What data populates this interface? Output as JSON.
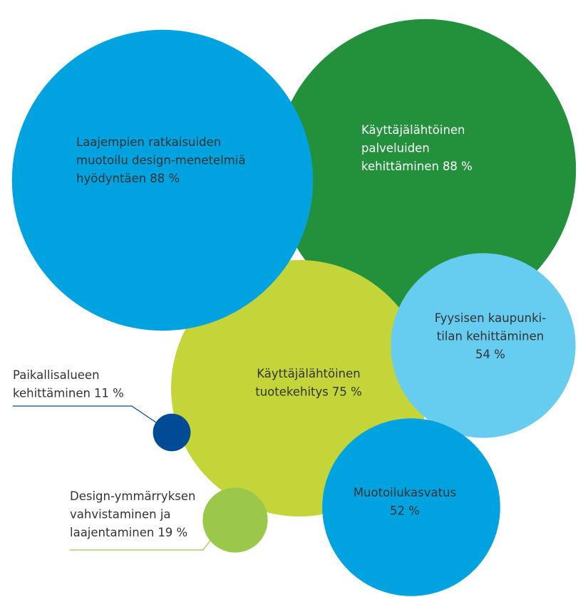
{
  "chart_data": {
    "type": "bubble",
    "categories": [
      [
        "Laajempien ratkaisuiden",
        "muotoilu design-menetelmiä",
        "hyödyntäen"
      ],
      [
        "Käyttäjälähtöinen",
        "palveluiden",
        "kehittäminen"
      ],
      [
        "Käyttäjälähtöinen",
        "tuotekehitys"
      ],
      [
        "Fyysisen kaupunki-",
        "tilan kehittäminen"
      ],
      [
        "Muotoilukasvatus"
      ],
      [
        "Paikallisalueen",
        "kehittäminen"
      ],
      [
        "Design-ymmärryksen",
        "vahvistaminen ja",
        "laajentaminen"
      ]
    ],
    "values": [
      88,
      88,
      75,
      54,
      52,
      11,
      19
    ],
    "value_labels": [
      "88 %",
      "88 %",
      "75 %",
      "54 %",
      "52 %",
      "11 %",
      "19 %"
    ],
    "colors": [
      "#00a3e0",
      "#23903c",
      "#c4d53a",
      "#66ccf0",
      "#00a3e0",
      "#004b93",
      "#9bc84b"
    ]
  }
}
